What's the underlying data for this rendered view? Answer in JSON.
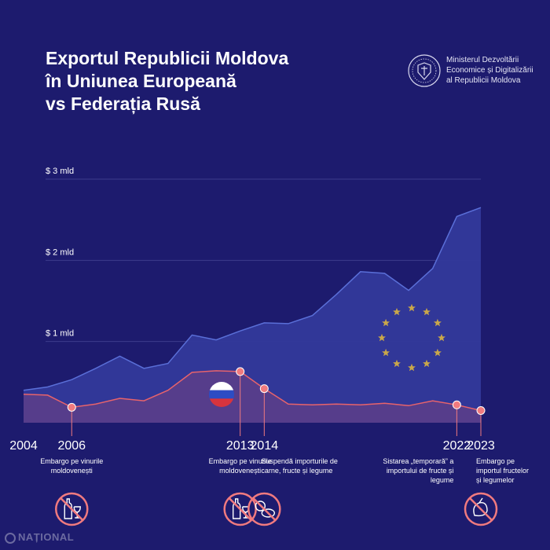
{
  "title_lines": [
    "Exportul Republicii Moldova",
    "în Uniunea Europeană",
    "vs Federația Rusă"
  ],
  "ministry_lines": [
    "Ministerul Dezvoltării",
    "Economice și Digitalizării",
    "al Republicii Moldova"
  ],
  "watermark": "NAȚIONAL",
  "colors": {
    "background": "#1d1b6e",
    "eu_fill": "#33399a",
    "eu_line": "#5a6fd8",
    "ru_fill": "#5b3e8a",
    "ru_line": "#e8636b",
    "marker": "#f07a7f",
    "stars": "#c9a74a",
    "grid": "#3d3c8c"
  },
  "chart_data": {
    "type": "area",
    "ylim": [
      0,
      3.1
    ],
    "y_ticks": [
      {
        "value": 1,
        "label": "$ 1 mld"
      },
      {
        "value": 2,
        "label": "$ 2 mld"
      },
      {
        "value": 3,
        "label": "$ 3 mld"
      }
    ],
    "x": [
      2004,
      2005,
      2006,
      2007,
      2008,
      2009,
      2010,
      2011,
      2012,
      2013,
      2014,
      2015,
      2016,
      2017,
      2018,
      2019,
      2020,
      2021,
      2022,
      2023
    ],
    "series": [
      {
        "key": "eu",
        "values": [
          0.4,
          0.44,
          0.53,
          0.67,
          0.82,
          0.67,
          0.73,
          1.08,
          1.02,
          1.13,
          1.23,
          1.22,
          1.32,
          1.58,
          1.86,
          1.84,
          1.63,
          1.9,
          2.54,
          2.65
        ]
      },
      {
        "key": "ru",
        "values": [
          0.35,
          0.34,
          0.19,
          0.23,
          0.3,
          0.27,
          0.4,
          0.62,
          0.64,
          0.63,
          0.42,
          0.23,
          0.22,
          0.23,
          0.22,
          0.24,
          0.21,
          0.27,
          0.22,
          0.15
        ]
      }
    ],
    "year_labels": [
      {
        "year": 2004,
        "label": "2004"
      },
      {
        "year": 2006,
        "label": "2006"
      },
      {
        "year": 2013,
        "label": "2013"
      },
      {
        "year": 2014,
        "label": "2014"
      },
      {
        "year": 2022,
        "label": "2022"
      },
      {
        "year": 2023,
        "label": "2023"
      }
    ],
    "events": [
      {
        "year": 2006,
        "lines": [
          "Embargo pe vinurile",
          "moldovenești"
        ],
        "icon": "wine-ban-icon"
      },
      {
        "year": 2013,
        "lines": [
          "Embargo pe vinurile",
          "moldovenești"
        ],
        "icon": "wine-ban-icon"
      },
      {
        "year": 2014,
        "lines": [
          "Suspendă importurile de",
          "carne, fructe și legume"
        ],
        "icon": "food-ban-icon"
      },
      {
        "year": 2022,
        "lines": [
          "Sistarea „temporară” a",
          "importului de fructe și",
          "legume"
        ],
        "icon": null
      },
      {
        "year": 2023,
        "lines": [
          "Embargo pe",
          "importul fructelor",
          "și legumelor"
        ],
        "icon": "produce-ban-icon"
      }
    ]
  }
}
